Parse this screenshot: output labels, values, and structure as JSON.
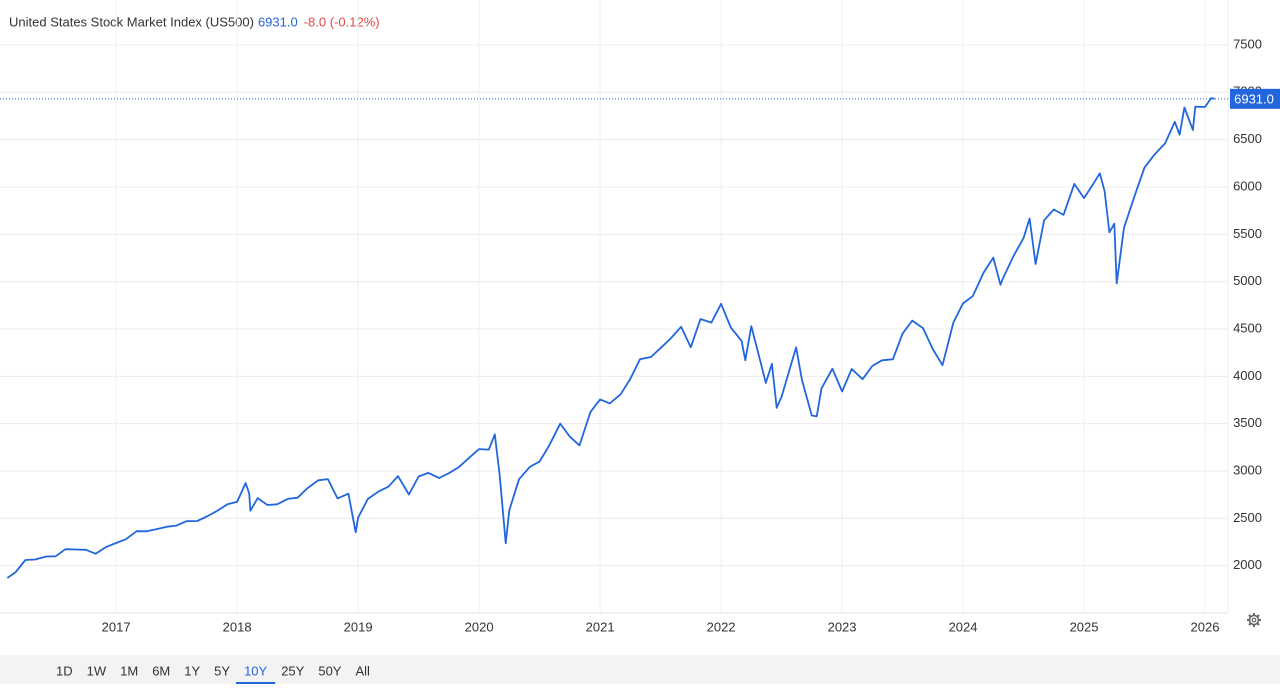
{
  "chart_data": {
    "type": "line",
    "title": "United States Stock Market Index (US500)",
    "last_value": {
      "value": 6931,
      "label": "6931.0"
    },
    "change": "-8.0 (-0.12%)",
    "x": [
      2016.1,
      2016.17,
      2016.25,
      2016.33,
      2016.42,
      2016.5,
      2016.58,
      2016.67,
      2016.75,
      2016.83,
      2016.92,
      2017.0,
      2017.08,
      2017.17,
      2017.25,
      2017.33,
      2017.42,
      2017.5,
      2017.58,
      2017.67,
      2017.75,
      2017.83,
      2017.92,
      2018.0,
      2018.07,
      2018.1,
      2018.11,
      2018.17,
      2018.25,
      2018.33,
      2018.42,
      2018.5,
      2018.58,
      2018.67,
      2018.75,
      2018.83,
      2018.92,
      2018.98,
      2019.0,
      2019.08,
      2019.17,
      2019.25,
      2019.33,
      2019.42,
      2019.5,
      2019.58,
      2019.67,
      2019.75,
      2019.83,
      2019.92,
      2020.0,
      2020.08,
      2020.13,
      2020.17,
      2020.22,
      2020.25,
      2020.33,
      2020.42,
      2020.5,
      2020.58,
      2020.67,
      2020.75,
      2020.83,
      2020.92,
      2021.0,
      2021.08,
      2021.17,
      2021.25,
      2021.33,
      2021.42,
      2021.5,
      2021.58,
      2021.67,
      2021.75,
      2021.83,
      2021.92,
      2022.0,
      2022.08,
      2022.17,
      2022.2,
      2022.25,
      2022.33,
      2022.37,
      2022.42,
      2022.46,
      2022.5,
      2022.58,
      2022.62,
      2022.67,
      2022.75,
      2022.79,
      2022.83,
      2022.92,
      2023.0,
      2023.08,
      2023.17,
      2023.25,
      2023.33,
      2023.42,
      2023.5,
      2023.58,
      2023.67,
      2023.75,
      2023.83,
      2023.92,
      2024.0,
      2024.08,
      2024.17,
      2024.25,
      2024.31,
      2024.33,
      2024.42,
      2024.5,
      2024.55,
      2024.6,
      2024.67,
      2024.75,
      2024.83,
      2024.92,
      2025.0,
      2025.08,
      2025.13,
      2025.17,
      2025.21,
      2025.25,
      2025.27,
      2025.33,
      2025.42,
      2025.5,
      2025.58,
      2025.67,
      2025.75,
      2025.79,
      2025.83,
      2025.9,
      2025.92,
      2026.0,
      2026.05,
      2026.08
    ],
    "series": [
      {
        "name": "US500",
        "color": "#2266dd",
        "values": [
          1870,
          1932,
          2060,
          2065,
          2097,
          2099,
          2174,
          2171,
          2168,
          2126,
          2199,
          2239,
          2279,
          2364,
          2363,
          2384,
          2412,
          2423,
          2470,
          2472,
          2519,
          2575,
          2648,
          2674,
          2873,
          2762,
          2581,
          2714,
          2641,
          2648,
          2705,
          2718,
          2816,
          2902,
          2914,
          2711,
          2760,
          2351,
          2507,
          2704,
          2784,
          2834,
          2946,
          2752,
          2942,
          2980,
          2926,
          2977,
          3038,
          3141,
          3231,
          3226,
          3386,
          2954,
          2237,
          2585,
          2912,
          3044,
          3100,
          3271,
          3500,
          3363,
          3270,
          3622,
          3756,
          3714,
          3811,
          3973,
          4181,
          4204,
          4298,
          4395,
          4523,
          4308,
          4605,
          4567,
          4766,
          4516,
          4374,
          4170,
          4530,
          4132,
          3930,
          4132,
          3667,
          3785,
          4130,
          4305,
          3955,
          3586,
          3577,
          3872,
          4080,
          3840,
          4077,
          3970,
          4109,
          4169,
          4180,
          4450,
          4589,
          4508,
          4288,
          4117,
          4568,
          4770,
          4846,
          5096,
          5254,
          4967,
          5036,
          5278,
          5460,
          5667,
          5186,
          5648,
          5762,
          5705,
          6032,
          5882,
          6040,
          6144,
          5955,
          5521,
          5612,
          4982,
          5569,
          5912,
          6205,
          6339,
          6460,
          6688,
          6552,
          6840,
          6602,
          6849,
          6845,
          6939,
          6931
        ]
      }
    ],
    "xlim": [
      2016.04,
      2026.19
    ],
    "xticks": [
      2017,
      2018,
      2019,
      2020,
      2021,
      2022,
      2023,
      2024,
      2025,
      2026
    ],
    "ylim": [
      1500,
      7975
    ],
    "yticks": [
      2000,
      2500,
      3000,
      3500,
      4000,
      4500,
      5000,
      5500,
      6000,
      6500,
      7000,
      7500
    ],
    "grid": true,
    "ranges": [
      "1D",
      "1W",
      "1M",
      "6M",
      "1Y",
      "5Y",
      "10Y",
      "25Y",
      "50Y",
      "All"
    ],
    "selected_range": "10Y"
  }
}
